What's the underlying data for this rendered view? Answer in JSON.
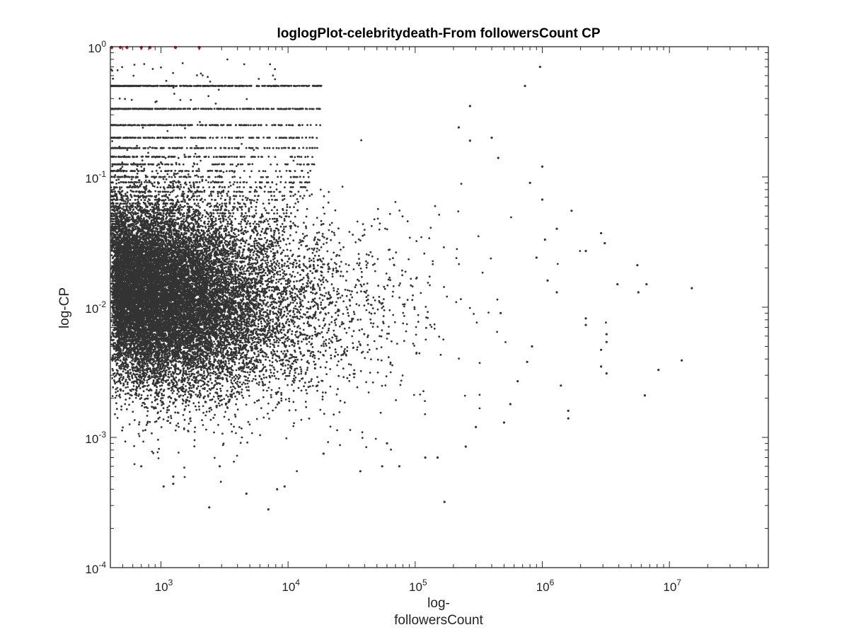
{
  "chart_data": {
    "type": "scatter",
    "title": "loglogPlot-celebritydeath-From followersCount CP",
    "xlabel_line1": "log-",
    "xlabel_line2": "followersCount",
    "ylabel": "log-CP",
    "xscale": "log",
    "yscale": "log",
    "xlim": [
      400,
      60000000
    ],
    "ylim": [
      0.0001,
      1
    ],
    "grid": false,
    "legend": "none",
    "x_ticks": [
      {
        "value": 1000,
        "base": "10",
        "exp": "3"
      },
      {
        "value": 10000,
        "base": "10",
        "exp": "4"
      },
      {
        "value": 100000,
        "base": "10",
        "exp": "5"
      },
      {
        "value": 1000000,
        "base": "10",
        "exp": "6"
      },
      {
        "value": 10000000,
        "base": "10",
        "exp": "7"
      }
    ],
    "y_ticks": [
      {
        "value": 0.0001,
        "base": "10",
        "exp": "-4"
      },
      {
        "value": 0.001,
        "base": "10",
        "exp": "-3"
      },
      {
        "value": 0.01,
        "base": "10",
        "exp": "-2"
      },
      {
        "value": 0.1,
        "base": "10",
        "exp": "-1"
      },
      {
        "value": 1,
        "base": "10",
        "exp": "0"
      }
    ],
    "marker_color": "#333333",
    "highlight_color": "#e00000",
    "series": [
      {
        "description": "dense cloud of points (representative sample)",
        "points": [
          [
            15000000,
            0.014
          ],
          [
            12500000,
            0.0039
          ],
          [
            8200000,
            0.0033
          ],
          [
            6400000,
            0.0021
          ],
          [
            6600000,
            0.015
          ],
          [
            5600000,
            0.021
          ],
          [
            5700000,
            0.013
          ],
          [
            3900000,
            0.015
          ],
          [
            3100000,
            0.031
          ],
          [
            2900000,
            0.037
          ],
          [
            3200000,
            0.0062
          ],
          [
            3200000,
            0.0054
          ],
          [
            2900000,
            0.0047
          ],
          [
            2900000,
            0.0035
          ],
          [
            3200000,
            0.0031
          ],
          [
            2200000,
            0.0082
          ],
          [
            2200000,
            0.0073
          ],
          [
            2200000,
            0.027
          ],
          [
            1700000,
            0.055
          ],
          [
            1600000,
            0.0016
          ],
          [
            1600000,
            0.0014
          ],
          [
            1400000,
            0.0025
          ],
          [
            1300000,
            0.013
          ],
          [
            1100000,
            0.016
          ],
          [
            1000000,
            0.067
          ],
          [
            1000000,
            0.12
          ],
          [
            960000,
            0.7
          ],
          [
            1050000,
            0.033
          ],
          [
            800000,
            0.09
          ],
          [
            730000,
            0.5
          ],
          [
            1300000,
            0.04
          ],
          [
            900000,
            0.024
          ],
          [
            830000,
            0.005
          ],
          [
            760000,
            0.0038
          ],
          [
            640000,
            0.0027
          ],
          [
            560000,
            0.0018
          ],
          [
            500000,
            0.0013
          ],
          [
            470000,
            0.009
          ],
          [
            450000,
            0.14
          ],
          [
            400000,
            0.2
          ],
          [
            270000,
            0.35
          ],
          [
            270000,
            0.19
          ],
          [
            220000,
            0.24
          ],
          [
            170000,
            0.00032
          ],
          [
            150000,
            0.0007
          ],
          [
            120000,
            0.0007
          ],
          [
            75000,
            0.0006
          ],
          [
            55000,
            0.0006
          ],
          [
            37000,
            0.00055
          ],
          [
            17000,
            0.0025
          ],
          [
            7000,
            0.00028
          ],
          [
            2400,
            0.00029
          ],
          [
            8200,
            0.0004
          ],
          [
            9400,
            0.00042
          ],
          [
            4700,
            0.00037
          ],
          [
            1050,
            0.00042
          ],
          [
            1250,
            0.00044
          ],
          [
            1250,
            0.0005
          ],
          [
            700,
            0.0006
          ],
          [
            300000,
            0.0012
          ],
          [
            250000,
            0.00085
          ],
          [
            60000,
            0.0009
          ],
          [
            19000,
            0.00075
          ],
          [
            2900,
            0.0006
          ]
        ]
      },
      {
        "description": "red points at the top edge (CP = 1)",
        "points": [
          [
            410,
            1
          ],
          [
            480,
            1
          ],
          [
            540,
            1
          ],
          [
            700,
            1
          ],
          [
            820,
            1
          ],
          [
            1300,
            1
          ],
          [
            2000,
            1
          ]
        ]
      }
    ]
  }
}
